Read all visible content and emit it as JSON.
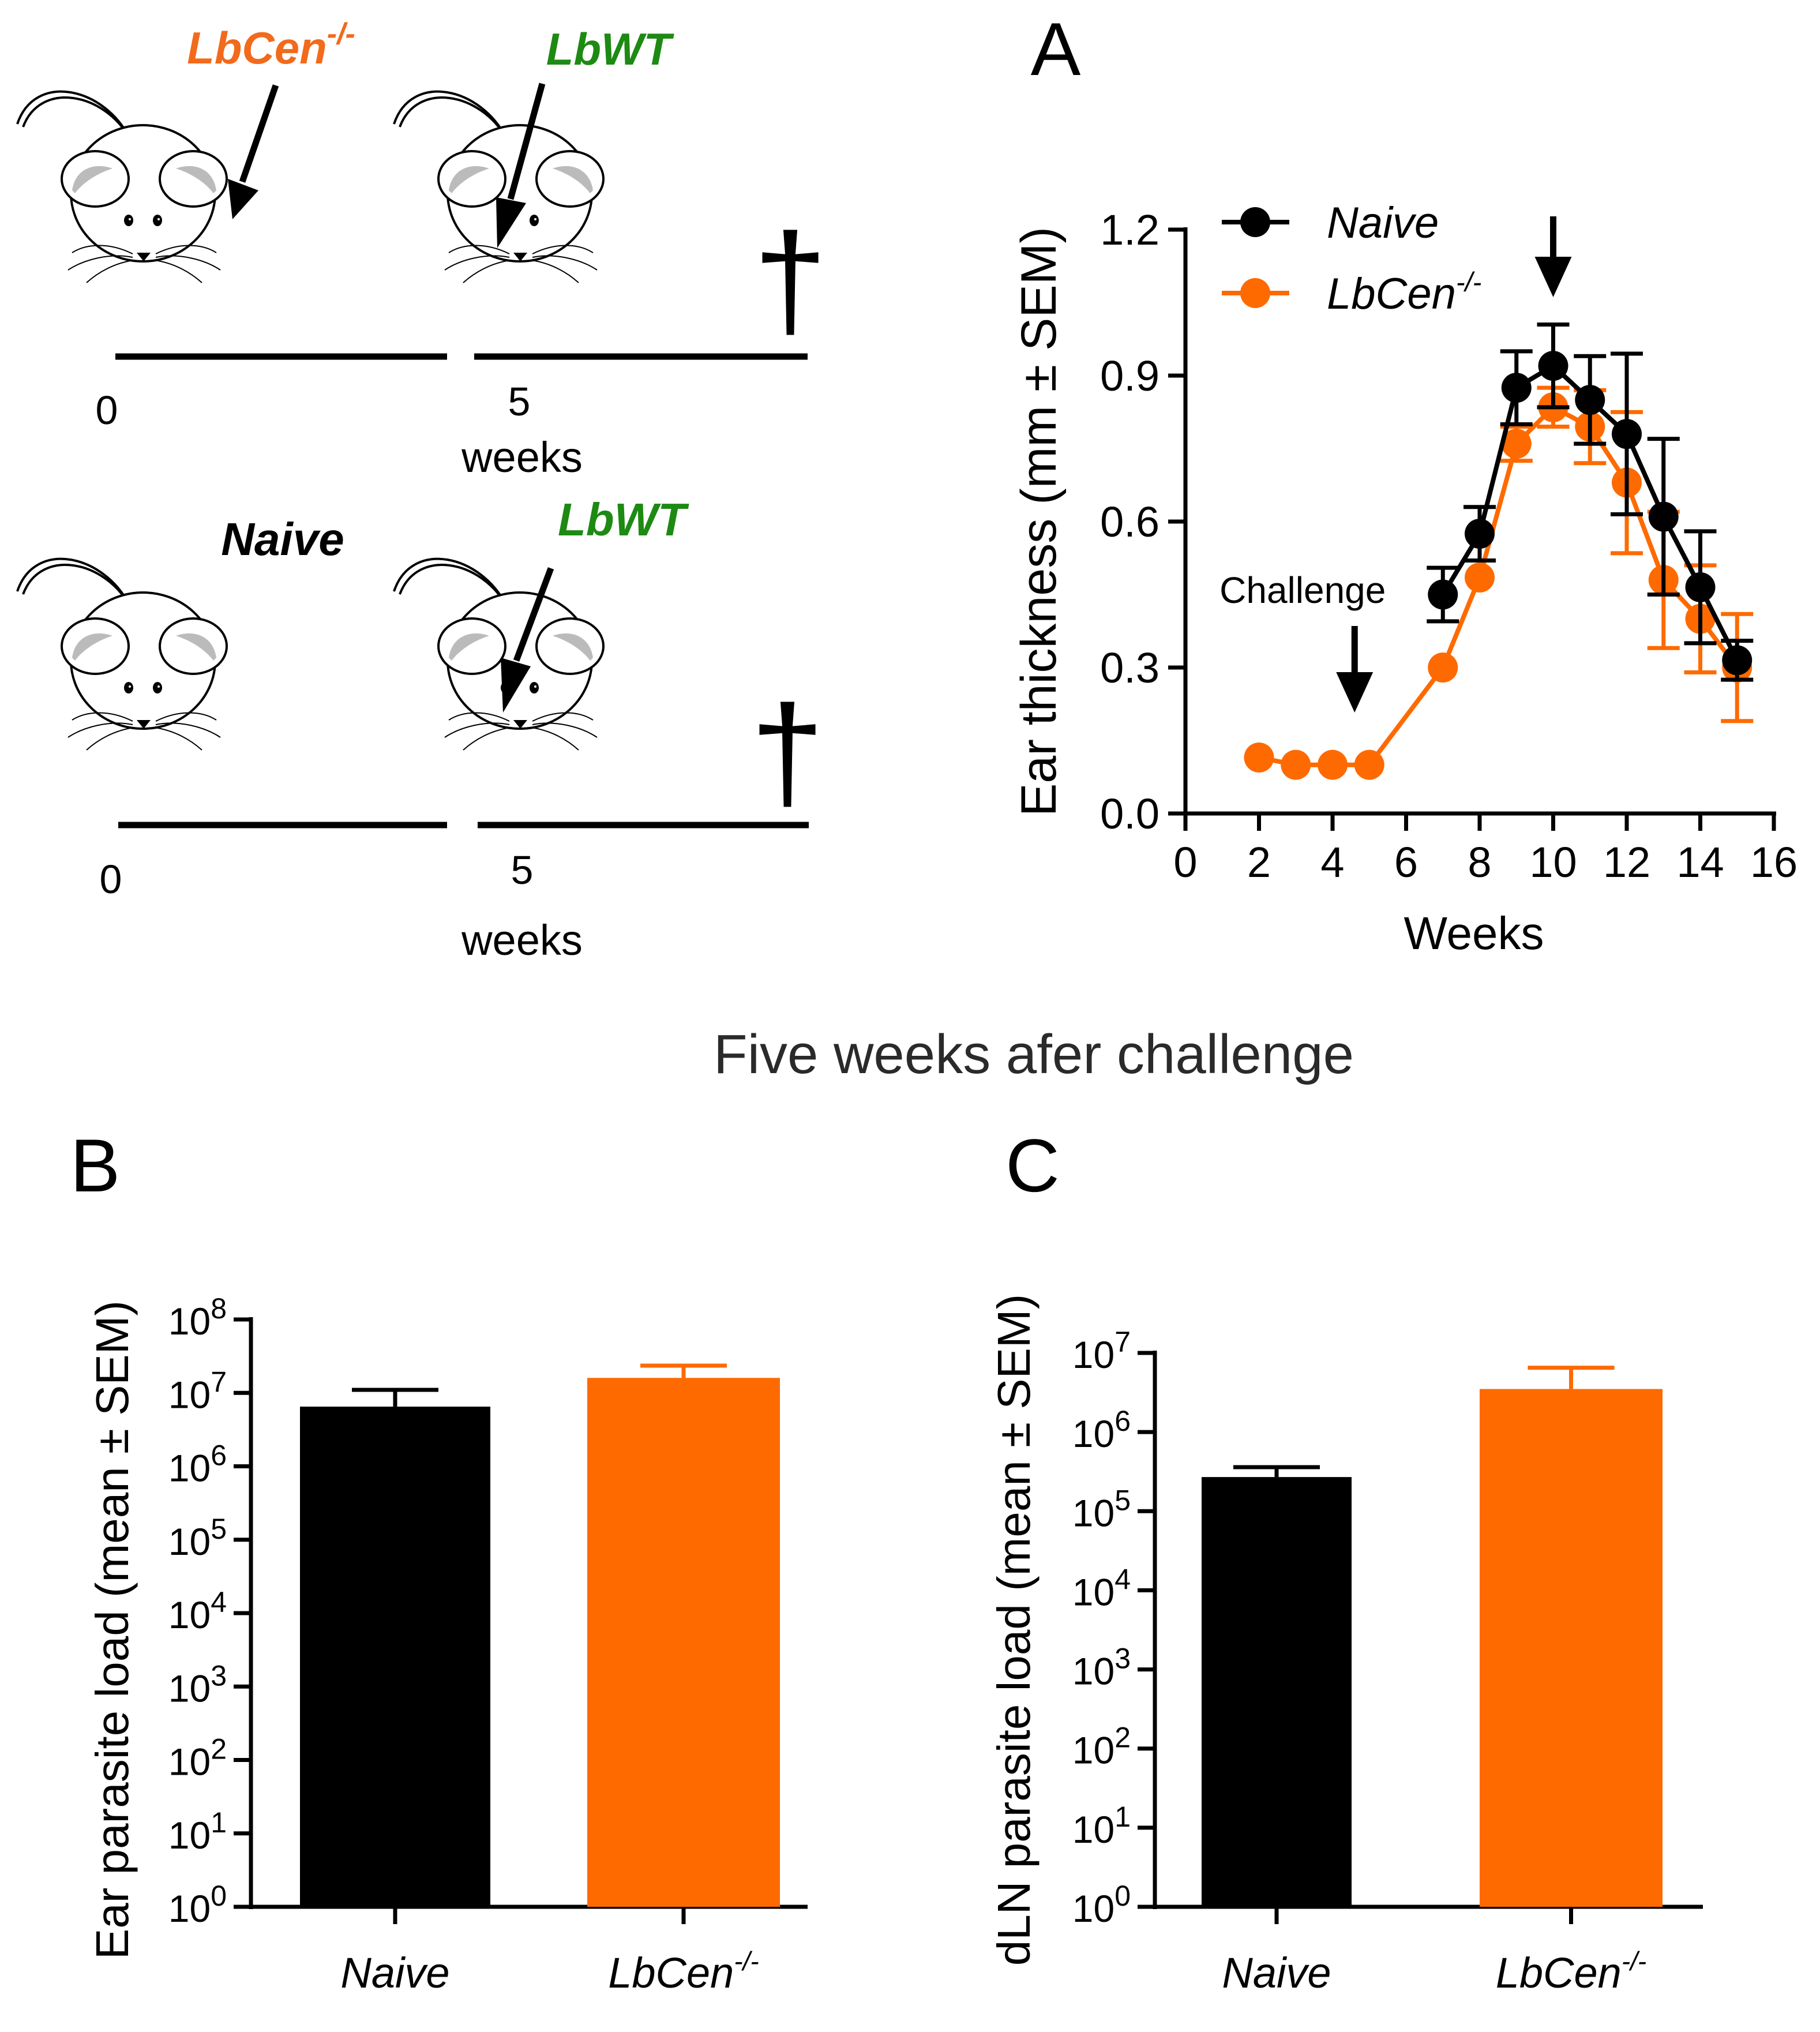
{
  "colors": {
    "naive": "#000000",
    "lbcen": "#fe6a00",
    "lbwt": "#1d8a13",
    "lbcen_label": "#f26a1b"
  },
  "schematic": {
    "group1": {
      "first_label": "LbCen",
      "first_sup": "-/-",
      "second_label": "LbWT",
      "start": "0",
      "mid": "5",
      "unit": "weeks"
    },
    "group2": {
      "first_label": "Naive",
      "second_label": "LbWT",
      "start": "0",
      "mid": "5",
      "unit": "weeks"
    },
    "death_symbol": "†"
  },
  "subtitle": "Five weeks afer challenge",
  "chart_data": [
    {
      "id": "A",
      "panel_letter": "A",
      "type": "line",
      "xlabel": "Weeks",
      "ylabel": "Ear thickness (mm ± SEM)",
      "xlim": [
        0,
        16
      ],
      "ylim": [
        0,
        1.2
      ],
      "xticks": [
        0,
        2,
        4,
        6,
        8,
        10,
        12,
        14,
        16
      ],
      "yticks": [
        "0.0",
        "0.3",
        "0.6",
        "0.9",
        "1.2"
      ],
      "annotations": {
        "challenge_text": "Challenge",
        "challenge_x": 4.6,
        "peak_x": 10
      },
      "legend_position": "top-left",
      "series": [
        {
          "name": "Naive",
          "color": "#000000",
          "x": [
            7,
            8,
            9,
            10,
            11,
            12,
            13,
            14,
            15
          ],
          "y": [
            0.45,
            0.575,
            0.875,
            0.92,
            0.85,
            0.78,
            0.61,
            0.465,
            0.315
          ],
          "err": [
            0.055,
            0.055,
            0.075,
            0.085,
            0.09,
            0.165,
            0.16,
            0.115,
            0.04
          ]
        },
        {
          "name": "LbCen",
          "sup": "-/-",
          "color": "#fe6a00",
          "x": [
            2,
            3,
            4,
            5,
            7,
            8,
            9,
            10,
            11,
            12,
            13,
            14,
            15
          ],
          "y": [
            0.115,
            0.1,
            0.1,
            0.1,
            0.3,
            0.485,
            0.76,
            0.835,
            0.795,
            0.68,
            0.48,
            0.4,
            0.3
          ],
          "err": [
            0,
            0,
            0,
            0,
            0,
            0,
            0.035,
            0.04,
            0.075,
            0.145,
            0.14,
            0.11,
            0.11
          ]
        }
      ]
    },
    {
      "id": "B",
      "panel_letter": "B",
      "type": "bar",
      "scale": "log10",
      "ylabel": "Ear parasite load (mean ± SEM)",
      "ylim_exp": [
        0,
        8
      ],
      "tick_base": "10",
      "ytick_exps": [
        "0",
        "1",
        "2",
        "3",
        "4",
        "5",
        "6",
        "7",
        "8"
      ],
      "categories": [
        {
          "name": "Naive"
        },
        {
          "name": "LbCen",
          "sup": "-/-"
        }
      ],
      "values": [
        6500000,
        16000000
      ],
      "err_upper": [
        11000000,
        23500000
      ],
      "bar_colors": [
        "#000000",
        "#fe6a00"
      ]
    },
    {
      "id": "C",
      "panel_letter": "C",
      "type": "bar",
      "scale": "log10",
      "ylabel": "dLN parasite load (mean ± SEM)",
      "ylim_exp": [
        0,
        7
      ],
      "tick_base": "10",
      "ytick_exps": [
        "0",
        "1",
        "2",
        "3",
        "4",
        "5",
        "6",
        "7"
      ],
      "categories": [
        {
          "name": "Naive"
        },
        {
          "name": "LbCen",
          "sup": "-/-"
        }
      ],
      "values": [
        270000,
        3500000
      ],
      "err_upper": [
        360000,
        6500000
      ],
      "bar_colors": [
        "#000000",
        "#fe6a00"
      ]
    }
  ]
}
